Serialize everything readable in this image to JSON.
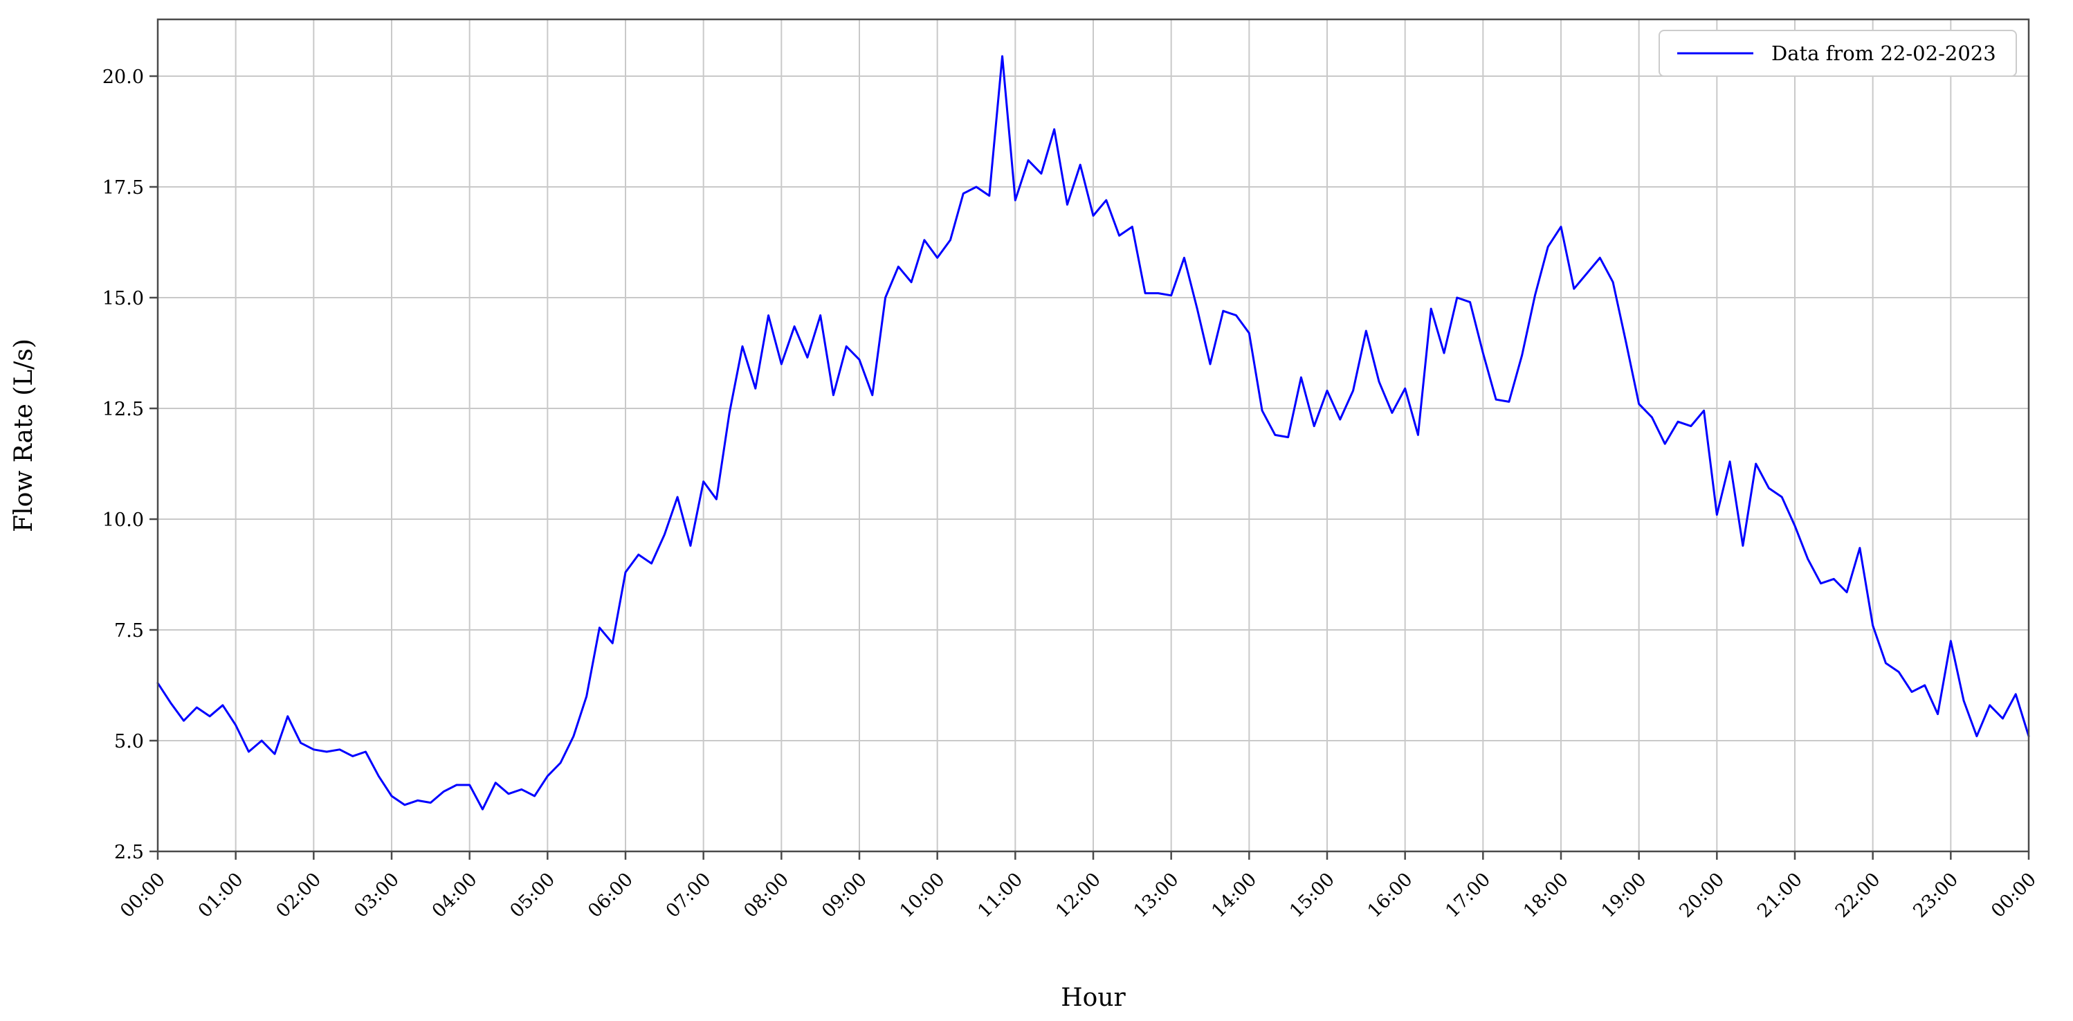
{
  "figure": {
    "background": "#ffffff"
  },
  "chart_data": {
    "type": "line",
    "title": "",
    "xlabel": "Hour",
    "ylabel": "Flow Rate (L/s)",
    "legend": {
      "label": "Data from 22-02-2023",
      "position": "upper right"
    },
    "grid": true,
    "colors": {
      "line": "#0000ff",
      "grid": "#c9c9c9",
      "spine": "#4a4a4a",
      "legend_border": "#cccccc",
      "text": "#000000"
    },
    "xlim_hours": [
      0,
      24
    ],
    "ylim": [
      2.5,
      21.28
    ],
    "x_ticks": [
      "00:00",
      "01:00",
      "02:00",
      "03:00",
      "04:00",
      "05:00",
      "06:00",
      "07:00",
      "08:00",
      "09:00",
      "10:00",
      "11:00",
      "12:00",
      "13:00",
      "14:00",
      "15:00",
      "16:00",
      "17:00",
      "18:00",
      "19:00",
      "20:00",
      "21:00",
      "22:00",
      "23:00",
      "00:00"
    ],
    "y_ticks": [
      2.5,
      5.0,
      7.5,
      10.0,
      12.5,
      15.0,
      17.5,
      20.0
    ],
    "y_tick_labels": [
      "2.5",
      "5.0",
      "7.5",
      "10.0",
      "12.5",
      "15.0",
      "17.5",
      "20.0"
    ],
    "series": [
      {
        "name": "Data from 22-02-2023",
        "color": "#0000ff",
        "start_time": "00:00",
        "interval_minutes": 10,
        "values": [
          6.3,
          5.85,
          5.45,
          5.75,
          5.55,
          5.8,
          5.35,
          4.75,
          5.0,
          4.7,
          5.55,
          4.95,
          4.8,
          4.75,
          4.8,
          4.65,
          4.75,
          4.2,
          3.75,
          3.55,
          3.65,
          3.6,
          3.85,
          4.0,
          4.0,
          3.45,
          4.05,
          3.8,
          3.9,
          3.75,
          4.2,
          4.5,
          5.1,
          6.0,
          7.55,
          7.2,
          8.8,
          9.2,
          9.0,
          9.65,
          10.5,
          9.4,
          10.85,
          10.45,
          12.4,
          13.9,
          12.95,
          14.6,
          13.5,
          14.35,
          13.65,
          14.6,
          12.8,
          13.9,
          13.6,
          12.8,
          15.0,
          15.7,
          15.35,
          16.3,
          15.9,
          16.3,
          17.35,
          17.5,
          17.3,
          20.45,
          17.2,
          18.1,
          17.8,
          18.8,
          17.1,
          18.0,
          16.85,
          17.2,
          16.4,
          16.6,
          15.1,
          15.1,
          15.05,
          15.9,
          14.75,
          13.5,
          14.7,
          14.6,
          14.2,
          12.45,
          11.9,
          11.85,
          13.2,
          12.1,
          12.9,
          12.25,
          12.9,
          14.25,
          13.1,
          12.4,
          12.95,
          11.9,
          14.75,
          13.75,
          15.0,
          14.9,
          13.75,
          12.7,
          12.65,
          13.7,
          15.05,
          16.15,
          16.6,
          15.2,
          15.55,
          15.9,
          15.35,
          14.0,
          12.6,
          12.3,
          11.7,
          12.2,
          12.1,
          12.45,
          10.1,
          11.3,
          9.4,
          11.25,
          10.7,
          10.5,
          9.85,
          9.1,
          8.55,
          8.65,
          8.35,
          9.35,
          7.6,
          6.75,
          6.55,
          6.1,
          6.25,
          5.6,
          7.25,
          5.9,
          5.1,
          5.8,
          5.5,
          6.05,
          5.1
        ]
      }
    ]
  }
}
